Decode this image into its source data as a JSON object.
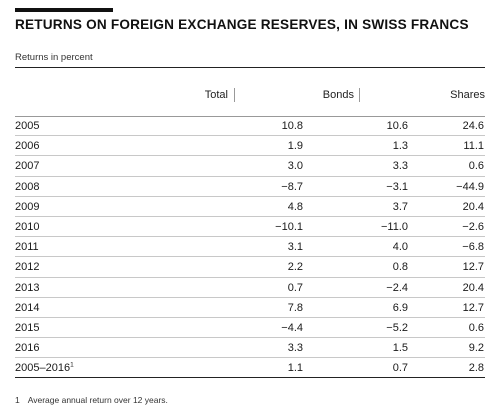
{
  "title": "RETURNS ON FOREIGN EXCHANGE RESERVES, IN SWISS FRANCS",
  "subtitle": "Returns in percent",
  "columns": {
    "total": "Total",
    "bonds": "Bonds",
    "shares": "Shares"
  },
  "rows": [
    {
      "year": "2005",
      "total": "10.8",
      "bonds": "10.6",
      "shares": "24.6"
    },
    {
      "year": "2006",
      "total": "1.9",
      "bonds": "1.3",
      "shares": "11.1"
    },
    {
      "year": "2007",
      "total": "3.0",
      "bonds": "3.3",
      "shares": "0.6"
    },
    {
      "year": "2008",
      "total": "−8.7",
      "bonds": "−3.1",
      "shares": "−44.9"
    },
    {
      "year": "2009",
      "total": "4.8",
      "bonds": "3.7",
      "shares": "20.4"
    },
    {
      "year": "2010",
      "total": "−10.1",
      "bonds": "−11.0",
      "shares": "−2.6"
    },
    {
      "year": "2011",
      "total": "3.1",
      "bonds": "4.0",
      "shares": "−6.8"
    },
    {
      "year": "2012",
      "total": "2.2",
      "bonds": "0.8",
      "shares": "12.7"
    },
    {
      "year": "2013",
      "total": "0.7",
      "bonds": "−2.4",
      "shares": "20.4"
    },
    {
      "year": "2014",
      "total": "7.8",
      "bonds": "6.9",
      "shares": "12.7"
    },
    {
      "year": "2015",
      "total": "−4.4",
      "bonds": "−5.2",
      "shares": "0.6"
    },
    {
      "year": "2016",
      "total": "3.3",
      "bonds": "1.5",
      "shares": "9.2"
    },
    {
      "year": "2005–2016",
      "footnote_mark": "1",
      "total": "1.1",
      "bonds": "0.7",
      "shares": "2.8"
    }
  ],
  "footnote": {
    "number": "1",
    "text": "Average annual return over 12 years."
  }
}
